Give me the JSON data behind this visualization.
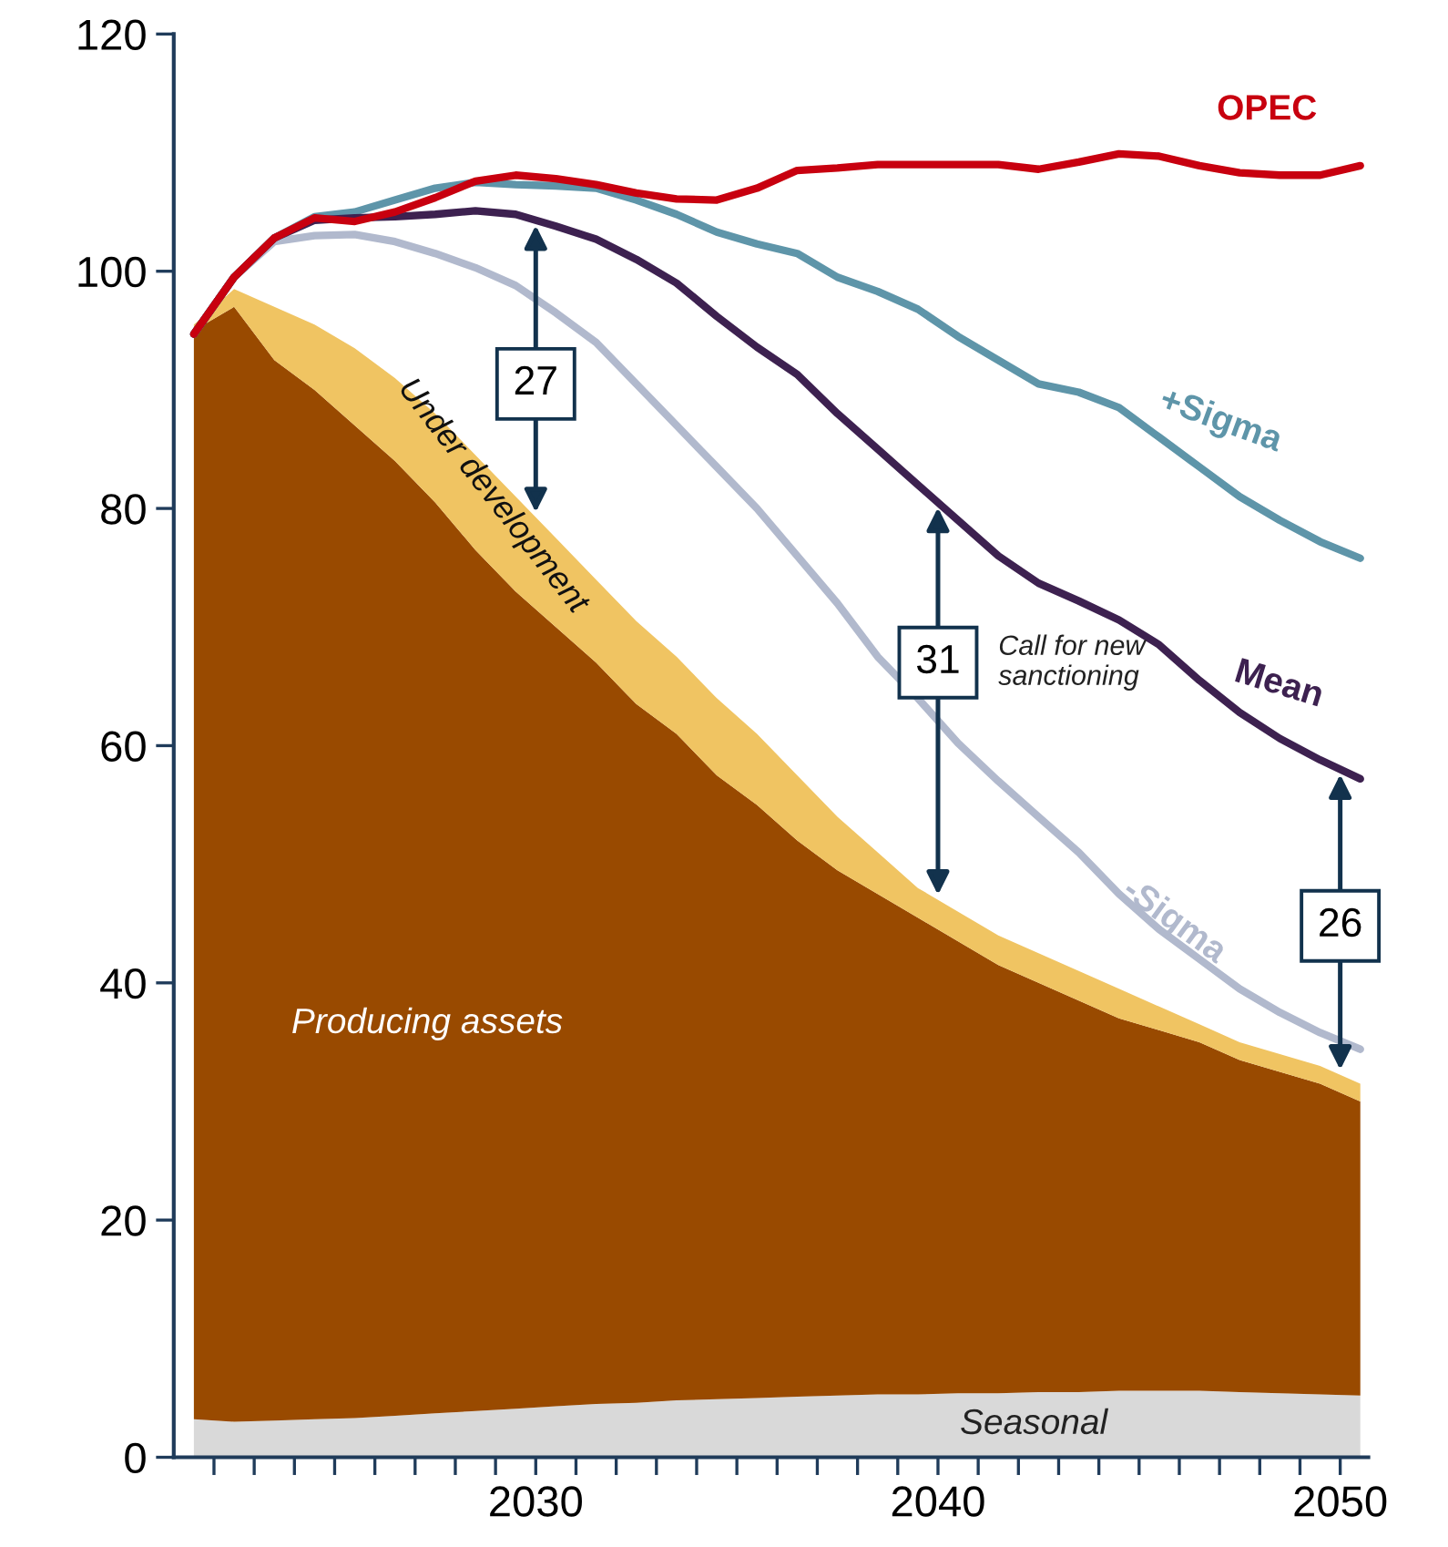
{
  "chart_data": {
    "type": "line",
    "x": [
      2021.5,
      2022.5,
      2023.5,
      2024.5,
      2025.5,
      2026.5,
      2027.5,
      2028.5,
      2029.5,
      2030.5,
      2031.5,
      2032.5,
      2033.5,
      2034.5,
      2035.5,
      2036.5,
      2037.5,
      2038.5,
      2039.5,
      2040.5,
      2041.5,
      2042.5,
      2043.5,
      2044.5,
      2045.5,
      2046.5,
      2047.5,
      2048.5,
      2049.5,
      2050.5
    ],
    "stacked": true,
    "series": [
      {
        "name": "Seasonal",
        "type": "area",
        "color": "#d9d9d9",
        "values": [
          3.2,
          3.0,
          3.1,
          3.2,
          3.3,
          3.5,
          3.7,
          3.9,
          4.1,
          4.3,
          4.5,
          4.6,
          4.8,
          4.9,
          5.0,
          5.1,
          5.2,
          5.3,
          5.3,
          5.4,
          5.4,
          5.5,
          5.5,
          5.6,
          5.6,
          5.6,
          5.5,
          5.4,
          5.3,
          5.2
        ]
      },
      {
        "name": "Producing assets",
        "type": "area",
        "color": "#994a00",
        "values": [
          91.8,
          94.0,
          89.4,
          86.8,
          83.7,
          80.5,
          76.8,
          72.6,
          68.9,
          65.7,
          62.5,
          58.9,
          56.2,
          52.6,
          50.0,
          46.9,
          44.3,
          42.2,
          40.2,
          38.1,
          36.1,
          34.5,
          33.0,
          31.4,
          30.4,
          29.4,
          28.0,
          27.1,
          26.2,
          24.8
        ]
      },
      {
        "name": "Under development",
        "type": "area",
        "color": "#f0c462",
        "values": [
          0.5,
          1.5,
          4.5,
          5.5,
          6.5,
          7,
          7.5,
          8,
          8,
          7.5,
          7,
          7,
          6.5,
          6.5,
          6,
          5.5,
          4.5,
          3.5,
          2.5,
          2.5,
          2.5,
          2.5,
          2.5,
          2.5,
          2,
          1.5,
          1.5,
          1.5,
          1.5,
          1.5
        ]
      },
      {
        "name": "-Sigma",
        "color": "#b1b9cd",
        "values": [
          94.7,
          99.5,
          102.5,
          103,
          103.1,
          102.5,
          101.5,
          100.3,
          98.8,
          96.5,
          94,
          90.5,
          87,
          83.5,
          80,
          76,
          72,
          67.5,
          64,
          60.2,
          57,
          54,
          51,
          47.5,
          44.5,
          42,
          39.5,
          37.5,
          35.8,
          34.4
        ]
      },
      {
        "name": "+Sigma",
        "color": "#5e95a9",
        "values": [
          94.7,
          99.5,
          102.8,
          104.6,
          105,
          106,
          107,
          107.5,
          107.3,
          107.2,
          107,
          106,
          104.8,
          103.3,
          102.3,
          101.5,
          99.5,
          98.3,
          96.8,
          94.5,
          92.5,
          90.5,
          89.8,
          88.5,
          86,
          83.5,
          81,
          79,
          77.2,
          75.8
        ]
      },
      {
        "name": "Mean",
        "color": "#3d2150",
        "values": [
          94.7,
          99.5,
          102.8,
          104.3,
          104.5,
          104.6,
          104.8,
          105.1,
          104.8,
          103.8,
          102.7,
          101,
          99,
          96.2,
          93.6,
          91.3,
          88,
          85,
          82,
          79,
          76,
          73.7,
          72.2,
          70.6,
          68.5,
          65.5,
          62.8,
          60.6,
          58.8,
          57.2
        ]
      },
      {
        "name": "OPEC",
        "color": "#c8000f",
        "values": [
          94.7,
          99.5,
          102.8,
          104.5,
          104.2,
          105,
          106.2,
          107.6,
          108.1,
          107.8,
          107.3,
          106.6,
          106.1,
          106,
          107,
          108.5,
          108.7,
          109,
          109,
          109,
          109,
          108.6,
          109.2,
          109.9,
          109.7,
          108.9,
          108.3,
          108.1,
          108.1,
          108.9
        ]
      }
    ],
    "xlim": [
      2021,
      2050.7
    ],
    "ylim": [
      0,
      120
    ],
    "yticks": [
      0,
      20,
      40,
      60,
      80,
      100,
      120
    ],
    "xticks": [
      {
        "value": 2022,
        "label": null
      },
      {
        "value": 2023,
        "label": null
      },
      {
        "value": 2024,
        "label": null
      },
      {
        "value": 2025,
        "label": null
      },
      {
        "value": 2026,
        "label": null
      },
      {
        "value": 2027,
        "label": null
      },
      {
        "value": 2028,
        "label": null
      },
      {
        "value": 2029,
        "label": null
      },
      2030,
      {
        "value": 2031,
        "label": null
      },
      {
        "value": 2032,
        "label": null
      },
      {
        "value": 2033,
        "label": null
      },
      {
        "value": 2034,
        "label": null
      },
      {
        "value": 2035,
        "label": null
      },
      {
        "value": 2036,
        "label": null
      },
      {
        "value": 2037,
        "label": null
      },
      {
        "value": 2038,
        "label": null
      },
      {
        "value": 2039,
        "label": null
      },
      2040,
      {
        "value": 2041,
        "label": null
      },
      {
        "value": 2042,
        "label": null
      },
      {
        "value": 2043,
        "label": null
      },
      {
        "value": 2044,
        "label": null
      },
      {
        "value": 2045,
        "label": null
      },
      {
        "value": 2046,
        "label": null
      },
      {
        "value": 2047,
        "label": null
      },
      {
        "value": 2048,
        "label": null
      },
      {
        "value": 2049,
        "label": null
      },
      2050
    ],
    "annotations": [
      {
        "text": "27",
        "x": 2030,
        "y": 90.5
      },
      {
        "text": "31",
        "x": 2040,
        "y": 67
      },
      {
        "text": "26",
        "x": 2050,
        "y": 44.8
      },
      "Call for new\nsanctioning"
    ],
    "grid": false,
    "legend": false,
    "line_style": "solid",
    "marker": "none"
  }
}
